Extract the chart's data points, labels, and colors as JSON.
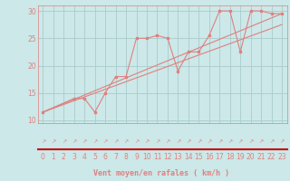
{
  "bg_color": "#cce8e8",
  "grid_color": "#aacccc",
  "line_color": "#e08080",
  "red_line_color": "#cc0000",
  "xlim": [
    -0.5,
    23.5
  ],
  "ylim": [
    9.5,
    31
  ],
  "yticks": [
    10,
    15,
    20,
    25,
    30
  ],
  "xticks": [
    0,
    1,
    2,
    3,
    4,
    5,
    6,
    7,
    8,
    9,
    10,
    11,
    12,
    13,
    14,
    15,
    16,
    17,
    18,
    19,
    20,
    21,
    22,
    23
  ],
  "line1_x": [
    0,
    3,
    4,
    5,
    6,
    7,
    8,
    9,
    10,
    11,
    12,
    13,
    14,
    15,
    16,
    17,
    18,
    19,
    20,
    21,
    22,
    23
  ],
  "line1_y": [
    11.5,
    14.0,
    14.0,
    11.5,
    15.0,
    18.0,
    18.0,
    25.0,
    25.0,
    25.5,
    25.0,
    19.0,
    22.5,
    22.5,
    25.5,
    30.0,
    30.0,
    22.5,
    30.0,
    30.0,
    29.5,
    29.5
  ],
  "line2_x": [
    0,
    23
  ],
  "line2_y": [
    11.5,
    29.5
  ],
  "line3_x": [
    0,
    23
  ],
  "line3_y": [
    11.5,
    27.5
  ],
  "xlabel": "Vent moyen/en rafales ( km/h )",
  "arrow_sym": "↗",
  "tick_fontsize": 5.5,
  "xlabel_fontsize": 6.0
}
